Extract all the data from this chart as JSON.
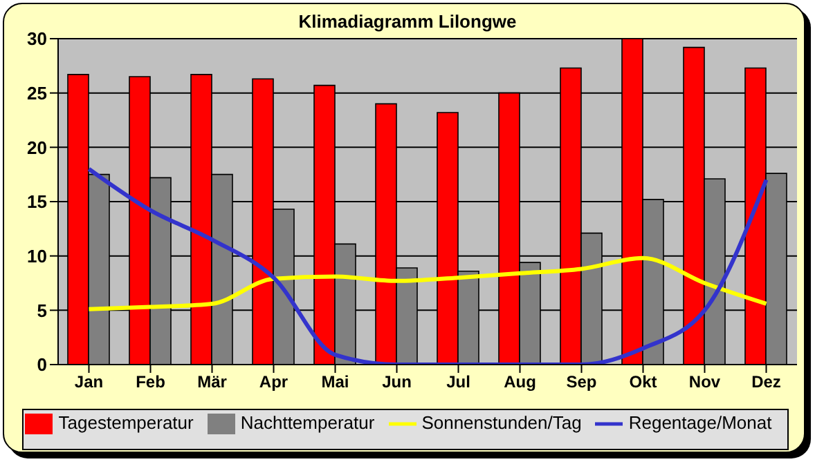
{
  "chart_data": {
    "type": "bar",
    "title": "Klimadiagramm Lilongwe",
    "categories": [
      "Jan",
      "Feb",
      "Mär",
      "Apr",
      "Mai",
      "Jun",
      "Jul",
      "Aug",
      "Sep",
      "Okt",
      "Nov",
      "Dez"
    ],
    "series": [
      {
        "name": "Tagestemperatur",
        "color": "#ff0000",
        "values": [
          26.7,
          26.5,
          26.7,
          26.3,
          25.7,
          24.0,
          23.2,
          25.0,
          27.3,
          30.0,
          29.2,
          27.3
        ]
      },
      {
        "name": "Nachttemperatur",
        "color": "#808080",
        "values": [
          17.5,
          17.2,
          17.5,
          14.3,
          11.1,
          8.9,
          8.6,
          9.4,
          12.1,
          15.2,
          17.1,
          17.6
        ]
      },
      {
        "name": "Sonnenstunden/Tag",
        "type": "line",
        "color": "#ffff00",
        "values": [
          5.1,
          5.3,
          5.6,
          7.9,
          8.1,
          7.7,
          8.0,
          8.4,
          8.8,
          9.8,
          7.5,
          5.6
        ]
      },
      {
        "name": "Regentage/Monat",
        "type": "line",
        "color": "#3333cc",
        "values": [
          18.0,
          14.2,
          11.5,
          8.0,
          0.9,
          0.0,
          0.0,
          0.0,
          0.0,
          1.5,
          5.0,
          17.0
        ]
      }
    ],
    "ylim": [
      0,
      30
    ],
    "yticks": [
      0,
      5,
      10,
      15,
      20,
      25,
      30
    ],
    "grid": "y",
    "legend": "bottom",
    "marker": "none"
  }
}
